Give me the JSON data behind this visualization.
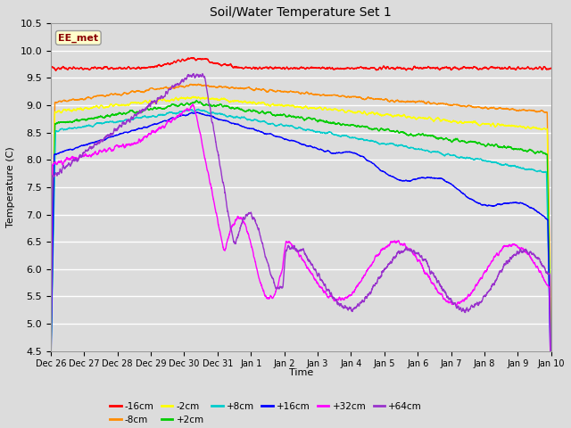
{
  "title": "Soil/Water Temperature Set 1",
  "xlabel": "Time",
  "ylabel": "Temperature (C)",
  "ylim": [
    4.5,
    10.5
  ],
  "yticks": [
    4.5,
    5.0,
    5.5,
    6.0,
    6.5,
    7.0,
    7.5,
    8.0,
    8.5,
    9.0,
    9.5,
    10.0,
    10.5
  ],
  "annotation": "EE_met",
  "annotation_color": "#8B0000",
  "annotation_bg": "#FFFFCC",
  "colors": {
    "-16cm": "#FF0000",
    "-8cm": "#FF8C00",
    "-2cm": "#FFFF00",
    "+2cm": "#00CC00",
    "+8cm": "#00CCCC",
    "+16cm": "#0000FF",
    "+32cm": "#FF00FF",
    "+64cm": "#9933CC"
  },
  "x_tick_labels": [
    "Dec 26",
    "Dec 27",
    "Dec 28",
    "Dec 29",
    "Dec 30",
    "Dec 31",
    "Jan 1",
    "Jan 2",
    "Jan 3",
    "Jan 4",
    "Jan 5",
    "Jan 6",
    "Jan 7",
    "Jan 8",
    "Jan 9",
    "Jan 10"
  ],
  "bg_color": "#DCDCDC",
  "grid_color": "#FFFFFF"
}
